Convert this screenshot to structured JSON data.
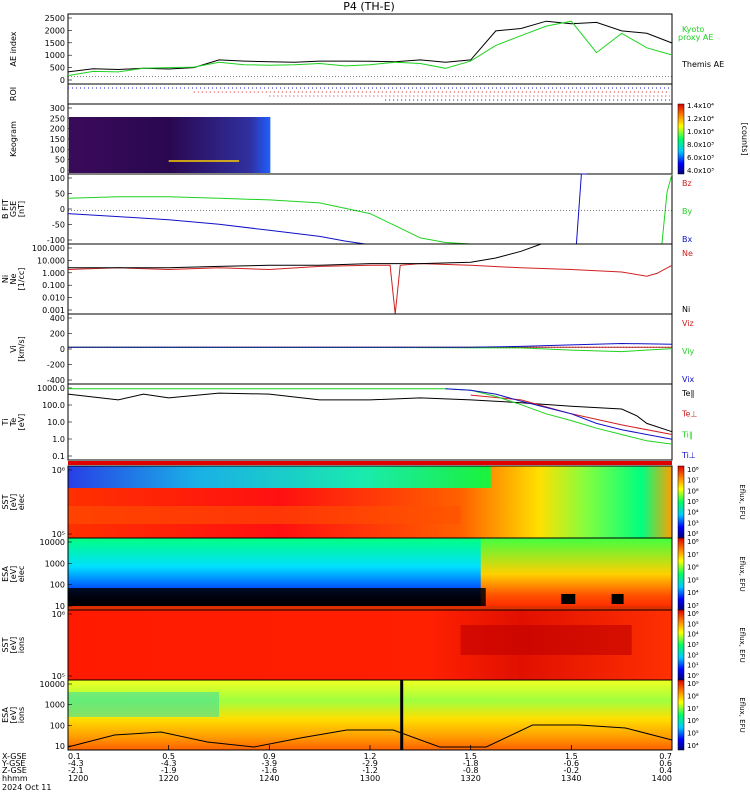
{
  "title": "P4 (TH-E)",
  "footer_date": "2024 Oct 11",
  "orbit": {
    "row_labels": [
      "X-GSE",
      "Y-GSE",
      "Z-GSE",
      "hhmm"
    ],
    "columns": [
      {
        "x": "0.1",
        "y": "-4.3",
        "z": "-2.1",
        "t": "1200"
      },
      {
        "x": "0.5",
        "y": "-4.3",
        "z": "-1.9",
        "t": "1220"
      },
      {
        "x": "0.9",
        "y": "-3.9",
        "z": "-1.6",
        "t": "1240"
      },
      {
        "x": "1.2",
        "y": "-2.9",
        "z": "-1.2",
        "t": "1300"
      },
      {
        "x": "1.5",
        "y": "-1.8",
        "z": "-0.8",
        "t": "1320"
      },
      {
        "x": "1.5",
        "y": "-0.6",
        "z": "-0.2",
        "t": "1340"
      },
      {
        "x": "0.7",
        "y": "0.6",
        "z": "0.4",
        "t": "1400"
      }
    ]
  },
  "colors": {
    "black": "#000000",
    "green": "#1fd21f",
    "red": "#d02020",
    "blue": "#1010c8"
  },
  "chart_data": [
    {
      "id": "ae",
      "type": "line",
      "ylabel": "AE index",
      "yticks": [
        "2500",
        "2000",
        "1500",
        "1000",
        "500",
        "0"
      ],
      "ylim": [
        -300,
        2600
      ],
      "series": [
        {
          "name": "Themis AE",
          "color": "#000000",
          "x": [
            0,
            5,
            10,
            15,
            20,
            25,
            30,
            35,
            40,
            45,
            50,
            55,
            60,
            65,
            70,
            75,
            80,
            85,
            90,
            95,
            100,
            105,
            110,
            115,
            120
          ],
          "y": [
            200,
            330,
            300,
            350,
            320,
            380,
            700,
            650,
            620,
            600,
            650,
            650,
            640,
            620,
            700,
            600,
            700,
            1900,
            2000,
            2300,
            2200,
            2250,
            1900,
            1800,
            1400
          ]
        },
        {
          "name": "Kyoto proxy AE",
          "color": "#1fd21f",
          "x": [
            0,
            5,
            10,
            15,
            20,
            25,
            30,
            35,
            40,
            45,
            50,
            55,
            60,
            65,
            70,
            75,
            80,
            85,
            90,
            95,
            100,
            105,
            110,
            115,
            120
          ],
          "y": [
            50,
            220,
            200,
            350,
            380,
            400,
            600,
            500,
            480,
            500,
            550,
            450,
            500,
            600,
            550,
            350,
            650,
            1300,
            1700,
            2100,
            2300,
            1000,
            1800,
            1200,
            900
          ]
        }
      ],
      "legend": [
        "Kyoto",
        "proxy AE",
        "Themis AE"
      ]
    },
    {
      "id": "roi",
      "type": "line",
      "ylabel": "ROI",
      "note": "dotted flag rows"
    },
    {
      "id": "keogram",
      "type": "heatmap",
      "ylabel": "Keogram",
      "yticks": [
        "300",
        "250",
        "200",
        "150",
        "100",
        "50",
        "0"
      ],
      "colorbar_ticks": [
        "1.4x10⁴",
        "1.2x10⁴",
        "1.0x10⁴",
        "8.0x10³",
        "6.0x10³",
        "4.0x10³"
      ],
      "colorbar_label": "[counts]"
    },
    {
      "id": "bfield",
      "type": "line",
      "ylabel": "B FIT",
      "ylabel2": "GSE",
      "ylabel3": "[nT]",
      "yticks": [
        "100",
        "50",
        "0",
        "-50",
        "-100"
      ],
      "ylim": [
        -110,
        120
      ],
      "series": [
        {
          "name": "Bz",
          "color": "#d02020",
          "x": [],
          "y": []
        },
        {
          "name": "By",
          "color": "#1fd21f",
          "x": [
            0,
            10,
            20,
            30,
            40,
            50,
            60,
            65,
            70,
            75,
            80,
            82,
            118,
            119,
            120
          ],
          "y": [
            40,
            45,
            45,
            40,
            35,
            25,
            -10,
            -50,
            -90,
            -105,
            -110,
            -115,
            -110,
            60,
            120
          ]
        },
        {
          "name": "Bx",
          "color": "#1010c8",
          "x": [
            0,
            5,
            10,
            20,
            30,
            40,
            50,
            55,
            59,
            60,
            62,
            100,
            101,
            102,
            103
          ],
          "y": [
            -10,
            -15,
            -20,
            -30,
            -45,
            -65,
            -85,
            -100,
            -110,
            -112,
            -115,
            -115,
            -110,
            120,
            120
          ]
        }
      ]
    },
    {
      "id": "density",
      "type": "line",
      "ylabel": "Ni",
      "ylabel2": "Ne",
      "ylabel3": "[1/cc]",
      "yticks": [
        "100.000",
        "10.000",
        "1.000",
        "0.100",
        "0.010",
        "0.001"
      ],
      "log": true,
      "ylim": [
        0.001,
        100
      ],
      "series": [
        {
          "name": "Ne",
          "color": "#d02020",
          "x": [
            0,
            10,
            20,
            30,
            40,
            50,
            60,
            64,
            65,
            66,
            70,
            80,
            90,
            100,
            110,
            115,
            117,
            120
          ],
          "y": [
            1.5,
            2,
            1.5,
            2,
            1.5,
            2.5,
            3,
            3,
            0.001,
            3,
            4,
            3,
            2,
            1.5,
            1,
            0.5,
            0.8,
            3
          ]
        },
        {
          "name": "Ni",
          "color": "#000000",
          "x": [
            0,
            10,
            20,
            30,
            40,
            50,
            60,
            70,
            80,
            85,
            90,
            94
          ],
          "y": [
            2,
            2,
            2,
            2.5,
            3,
            3,
            4,
            4,
            5,
            10,
            30,
            100
          ]
        }
      ]
    },
    {
      "id": "velocity",
      "type": "line",
      "ylabel": "Vi",
      "ylabel2": "[km/s]",
      "yticks": [
        "400",
        "200",
        "0",
        "-200",
        "-400"
      ],
      "ylim": [
        -500,
        450
      ],
      "series": [
        {
          "name": "Viz",
          "color": "#d02020",
          "x": [
            0,
            30,
            60,
            90,
            120
          ],
          "y": [
            0,
            0,
            0,
            0,
            0
          ]
        },
        {
          "name": "Viy",
          "color": "#1fd21f",
          "x": [
            0,
            30,
            60,
            90,
            100,
            110,
            120
          ],
          "y": [
            0,
            -5,
            -5,
            -10,
            -40,
            -60,
            -20
          ]
        },
        {
          "name": "Vix",
          "color": "#1010c8",
          "x": [
            0,
            30,
            60,
            80,
            90,
            100,
            110,
            120
          ],
          "y": [
            0,
            0,
            0,
            0,
            10,
            30,
            50,
            40
          ]
        }
      ]
    },
    {
      "id": "temperature",
      "type": "line",
      "ylabel": "Ti",
      "ylabel2": "Te",
      "ylabel3": "[eV]",
      "yticks": [
        "1000.0",
        "100.0",
        "10.0",
        "1.0",
        "0.1"
      ],
      "log": true,
      "ylim": [
        0.05,
        3000
      ],
      "series": [
        {
          "name": "Te∥",
          "color": "#000000",
          "x": [
            0,
            10,
            15,
            20,
            30,
            40,
            50,
            60,
            70,
            80,
            90,
            100,
            110,
            113,
            115,
            120
          ],
          "y": [
            700,
            300,
            700,
            400,
            800,
            700,
            300,
            300,
            400,
            300,
            200,
            120,
            80,
            30,
            10,
            3
          ]
        },
        {
          "name": "Te⊥",
          "color": "#d02020",
          "x": [
            80,
            90,
            100,
            110,
            120
          ],
          "y": [
            600,
            300,
            40,
            8,
            2
          ]
        },
        {
          "name": "Ti∥",
          "color": "#1fd21f",
          "x": [
            0,
            20,
            40,
            60,
            75,
            80,
            85,
            90,
            95,
            100,
            105,
            110,
            115,
            120
          ],
          "y": [
            1500,
            1500,
            1500,
            1500,
            1500,
            1200,
            500,
            150,
            40,
            15,
            5,
            2,
            0.8,
            0.5
          ]
        },
        {
          "name": "Ti⊥",
          "color": "#1010c8",
          "x": [
            75,
            80,
            85,
            90,
            95,
            100,
            105,
            110,
            115,
            120
          ],
          "y": [
            1500,
            1200,
            700,
            250,
            100,
            40,
            10,
            4,
            2,
            1
          ]
        }
      ]
    },
    {
      "id": "sst_e",
      "type": "heatmap",
      "ylabel": "SST",
      "ylabel2": "[eV]",
      "ylabel3": "elec",
      "yticks": [
        "10⁶",
        "10⁵"
      ],
      "colorbar_label": "Eflux, EFU",
      "colorbar_ticks": [
        "10⁸",
        "10⁷",
        "10⁶",
        "10⁵",
        "10⁴",
        "10³",
        "10²"
      ]
    },
    {
      "id": "esa_e",
      "type": "heatmap",
      "ylabel": "ESA",
      "ylabel2": "[eV]",
      "ylabel3": "elec",
      "yticks": [
        "10000",
        "1000",
        "100",
        "10"
      ],
      "colorbar_label": "Eflux, EFU",
      "colorbar_ticks": [
        "10⁸",
        "10⁷",
        "10⁶",
        "10⁵",
        "10⁴",
        "10³"
      ]
    },
    {
      "id": "sst_i",
      "type": "heatmap",
      "ylabel": "SST",
      "ylabel2": "[eV]",
      "ylabel3": "ions",
      "yticks": [
        "10⁶",
        "10⁵"
      ],
      "colorbar_label": "Eflux, EFU",
      "colorbar_ticks": [
        "10⁶",
        "10⁵",
        "10⁴",
        "10³",
        "10²",
        "10¹",
        "10⁰"
      ]
    },
    {
      "id": "esa_i",
      "type": "heatmap",
      "ylabel": "ESA",
      "ylabel2": "[eV]",
      "ylabel3": "ions",
      "yticks": [
        "10000",
        "1000",
        "100",
        "10"
      ],
      "colorbar_label": "Eflux, EFU",
      "colorbar_ticks": [
        "10⁹",
        "10⁸",
        "10⁷",
        "10⁶",
        "10⁵",
        "10⁴"
      ]
    }
  ]
}
